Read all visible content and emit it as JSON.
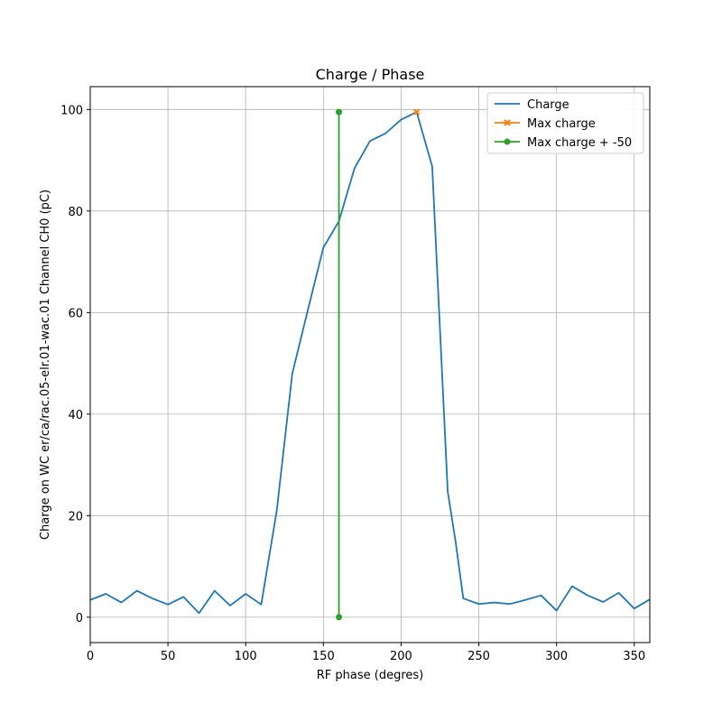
{
  "chart_data": {
    "type": "line",
    "title": "Charge / Phase",
    "xlabel": "RF phase (degres)",
    "ylabel": "Charge on WC er/ca/rac.05-elr.01-wac.01 Channel CH0 (pC)",
    "xlim": [
      0,
      360
    ],
    "ylim": [
      -5,
      104.5
    ],
    "xticks": [
      0,
      50,
      100,
      150,
      200,
      250,
      300,
      350
    ],
    "yticks": [
      0,
      20,
      40,
      60,
      80,
      100
    ],
    "grid": true,
    "legend_position": "top-right",
    "series": [
      {
        "name": "Charge",
        "color": "#1f77b4",
        "marker": "none",
        "x": [
          0,
          10,
          20,
          30,
          40,
          50,
          60,
          70,
          80,
          90,
          100,
          110,
          120,
          130,
          140,
          150,
          160,
          170,
          180,
          190,
          200,
          210,
          220,
          230,
          235,
          240,
          250,
          260,
          270,
          280,
          290,
          300,
          310,
          320,
          330,
          340,
          350,
          360
        ],
        "y": [
          3.4,
          4.6,
          2.9,
          5.2,
          3.7,
          2.5,
          4.0,
          0.8,
          5.2,
          2.3,
          4.6,
          2.5,
          21.0,
          48.0,
          60.5,
          72.8,
          78.0,
          88.4,
          93.8,
          95.3,
          98.0,
          99.5,
          88.8,
          24.7,
          15.0,
          3.7,
          2.6,
          2.9,
          2.6,
          3.4,
          4.3,
          1.3,
          6.1,
          4.3,
          3.0,
          4.8,
          1.7,
          3.5
        ]
      },
      {
        "name": "Max charge",
        "color": "#ff7f0e",
        "marker": "x",
        "x": [
          210
        ],
        "y": [
          99.5
        ]
      },
      {
        "name": "Max charge + -50",
        "color": "#2ca02c",
        "marker": "o",
        "x": [
          160,
          160
        ],
        "y": [
          0,
          99.5
        ]
      }
    ]
  }
}
